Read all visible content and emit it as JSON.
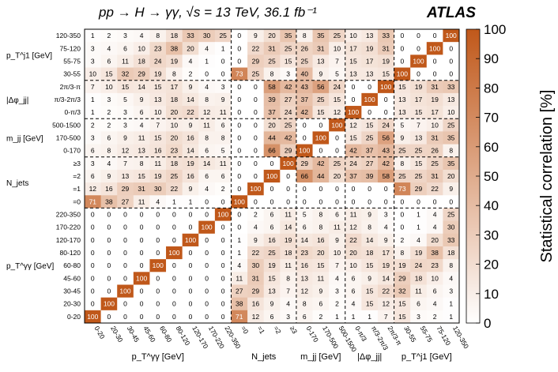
{
  "header": {
    "title": "pp → H → γγ,  √s = 13 TeV,  36.1 fb⁻¹",
    "experiment": "ATLAS"
  },
  "colors": {
    "max": "#c0581a",
    "min": "#ffffff",
    "grid": "#000000"
  },
  "chart_data": {
    "type": "heatmap",
    "x": [
      "0-20",
      "20-30",
      "30-45",
      "45-60",
      "60-80",
      "80-120",
      "120-170",
      "170-220",
      "220-350",
      "=0",
      "=1",
      "=2",
      "≥3",
      "0-170",
      "170-500",
      "500-1500",
      "0-π/3",
      "π/3-2π/3",
      "2π/3-π",
      "30-55",
      "55-75",
      "75-120",
      "120-350"
    ],
    "y": [
      "120-350",
      "75-120",
      "55-75",
      "30-55",
      "2π/3-π",
      "π/3-2π/3",
      "0-π/3",
      "500-1500",
      "170-500",
      "0-170",
      "≥3",
      "=2",
      "=1",
      "=0",
      "220-350",
      "170-220",
      "120-170",
      "80-120",
      "60-80",
      "45-60",
      "30-45",
      "20-30",
      "0-20"
    ],
    "values": [
      [
        1,
        2,
        3,
        4,
        8,
        18,
        33,
        30,
        25,
        0,
        9,
        20,
        35,
        8,
        35,
        25,
        10,
        13,
        33,
        0,
        0,
        0,
        100
      ],
      [
        3,
        4,
        6,
        10,
        23,
        38,
        20,
        4,
        1,
        0,
        22,
        31,
        25,
        26,
        31,
        10,
        17,
        19,
        31,
        0,
        0,
        100,
        0
      ],
      [
        3,
        6,
        11,
        18,
        24,
        19,
        4,
        1,
        0,
        0,
        29,
        25,
        15,
        25,
        13,
        7,
        15,
        17,
        19,
        0,
        100,
        0,
        0
      ],
      [
        10,
        15,
        32,
        29,
        19,
        8,
        2,
        0,
        0,
        73,
        25,
        8,
        3,
        40,
        9,
        5,
        13,
        13,
        15,
        100,
        0,
        0,
        0
      ],
      [
        7,
        10,
        15,
        14,
        15,
        17,
        9,
        4,
        3,
        0,
        0,
        58,
        42,
        43,
        56,
        24,
        0,
        0,
        100,
        15,
        19,
        31,
        33
      ],
      [
        1,
        3,
        5,
        9,
        13,
        18,
        14,
        8,
        9,
        0,
        0,
        39,
        27,
        37,
        25,
        15,
        0,
        100,
        0,
        13,
        17,
        19,
        13
      ],
      [
        1,
        2,
        3,
        6,
        10,
        20,
        22,
        12,
        11,
        0,
        0,
        37,
        24,
        42,
        15,
        12,
        100,
        0,
        0,
        13,
        15,
        17,
        10
      ],
      [
        2,
        2,
        3,
        4,
        7,
        10,
        9,
        11,
        6,
        0,
        0,
        20,
        25,
        0,
        0,
        100,
        12,
        15,
        24,
        5,
        7,
        10,
        25
      ],
      [
        3,
        6,
        9,
        11,
        15,
        20,
        16,
        8,
        8,
        0,
        0,
        44,
        42,
        0,
        100,
        0,
        15,
        25,
        56,
        9,
        13,
        31,
        35
      ],
      [
        6,
        8,
        12,
        13,
        16,
        23,
        14,
        6,
        5,
        0,
        0,
        66,
        29,
        100,
        0,
        0,
        42,
        37,
        43,
        25,
        25,
        26,
        8
      ],
      [
        3,
        4,
        7,
        8,
        11,
        18,
        19,
        14,
        11,
        0,
        0,
        0,
        100,
        29,
        42,
        25,
        24,
        27,
        42,
        8,
        15,
        25,
        35
      ],
      [
        6,
        9,
        13,
        15,
        19,
        25,
        16,
        6,
        6,
        0,
        0,
        100,
        0,
        66,
        44,
        20,
        37,
        39,
        58,
        25,
        25,
        31,
        20
      ],
      [
        12,
        16,
        29,
        31,
        30,
        22,
        9,
        4,
        2,
        0,
        100,
        0,
        0,
        0,
        0,
        0,
        0,
        0,
        0,
        73,
        29,
        22,
        9
      ],
      [
        71,
        38,
        27,
        11,
        4,
        1,
        1,
        0,
        0,
        100,
        0,
        0,
        0,
        0,
        0,
        0,
        0,
        0,
        0,
        0,
        0,
        0,
        0
      ],
      [
        0,
        0,
        0,
        0,
        0,
        0,
        0,
        0,
        100,
        0,
        2,
        6,
        11,
        5,
        8,
        6,
        11,
        9,
        3,
        0,
        1,
        4,
        25
      ],
      [
        0,
        0,
        0,
        0,
        0,
        0,
        0,
        100,
        0,
        0,
        4,
        6,
        14,
        6,
        8,
        11,
        12,
        8,
        4,
        0,
        1,
        4,
        30
      ],
      [
        0,
        0,
        0,
        0,
        0,
        0,
        100,
        0,
        0,
        1,
        9,
        16,
        19,
        14,
        16,
        9,
        22,
        14,
        9,
        2,
        4,
        20,
        33
      ],
      [
        0,
        0,
        0,
        0,
        0,
        100,
        0,
        0,
        0,
        1,
        22,
        25,
        18,
        23,
        20,
        10,
        20,
        18,
        17,
        8,
        19,
        38,
        18
      ],
      [
        0,
        0,
        0,
        0,
        100,
        0,
        0,
        0,
        0,
        4,
        30,
        19,
        11,
        16,
        15,
        7,
        10,
        15,
        19,
        19,
        24,
        23,
        8
      ],
      [
        0,
        0,
        0,
        100,
        0,
        0,
        0,
        0,
        0,
        11,
        31,
        15,
        8,
        13,
        11,
        4,
        6,
        9,
        14,
        29,
        18,
        10,
        4
      ],
      [
        0,
        0,
        100,
        0,
        0,
        0,
        0,
        0,
        0,
        27,
        29,
        13,
        7,
        12,
        9,
        3,
        6,
        15,
        22,
        32,
        11,
        6,
        3
      ],
      [
        0,
        100,
        0,
        0,
        0,
        0,
        0,
        0,
        0,
        38,
        16,
        9,
        4,
        8,
        6,
        2,
        4,
        15,
        12,
        15,
        6,
        4,
        1
      ],
      [
        100,
        0,
        0,
        0,
        0,
        0,
        0,
        0,
        0,
        71,
        12,
        6,
        3,
        6,
        2,
        1,
        1,
        1,
        7,
        15,
        3,
        2,
        1
      ]
    ],
    "x_groups": [
      {
        "label": "p_T^γγ [GeV]"
      },
      {
        "label": "N_jets"
      },
      {
        "label": "m_jj [GeV]"
      },
      {
        "label": "|Δφ_jj|"
      },
      {
        "label": "p_T^j1 [GeV]"
      }
    ],
    "y_groups": [
      {
        "label": "p_T^j1 [GeV]"
      },
      {
        "label": "|Δφ_jj|"
      },
      {
        "label": "m_jj [GeV]"
      },
      {
        "label": "N_jets"
      },
      {
        "label": "p_T^γγ [GeV]"
      }
    ],
    "colorbar": {
      "label": "Statistical correlation [%]",
      "range": [
        0,
        100
      ],
      "ticks": [
        0,
        10,
        20,
        30,
        40,
        50,
        60,
        70,
        80,
        90,
        100
      ]
    }
  }
}
